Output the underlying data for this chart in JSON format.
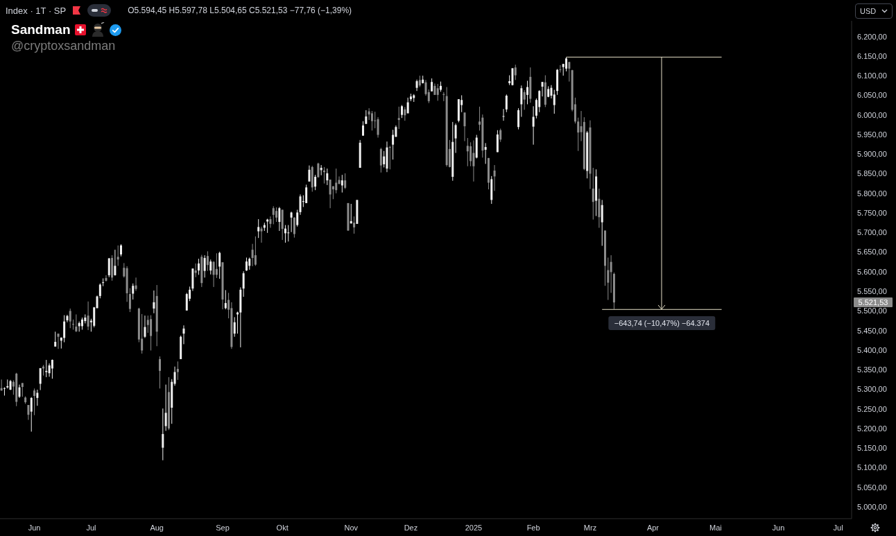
{
  "chart_data": {
    "type": "candlestick",
    "title": "Index · 1T · SP",
    "annotations": [
      "O5.594,45 H5.597,78 L5.504,65 C5.521,53 −77,76 (−1,39%)",
      "Sandman",
      "@cryptoxsandman",
      "USD",
      "5.521,53"
    ],
    "categories": [
      null,
      null,
      null,
      null,
      null,
      null,
      null,
      null,
      null,
      null,
      null,
      "Jun",
      null,
      null,
      null,
      null,
      null,
      null,
      null,
      null,
      null,
      null,
      null,
      null,
      null,
      null,
      null,
      null,
      null,
      null,
      "Jul",
      null,
      null,
      null,
      null,
      null,
      null,
      null,
      null,
      null,
      null,
      null,
      null,
      null,
      null,
      null,
      null,
      null,
      null,
      null,
      null,
      null,
      "Aug",
      null,
      null,
      null,
      null,
      null,
      null,
      null,
      null,
      null,
      null,
      null,
      null,
      null,
      null,
      null,
      null,
      null,
      null,
      null,
      null,
      null,
      "Sep",
      null,
      null,
      null,
      null,
      null,
      null,
      null,
      null,
      null,
      null,
      null,
      null,
      null,
      null,
      null,
      null,
      null,
      null,
      null,
      "Okt",
      null,
      null,
      null,
      null,
      null,
      null,
      null,
      null,
      null,
      null,
      null,
      null,
      null,
      null,
      null,
      null,
      null,
      null,
      null,
      null,
      null,
      null,
      "Nov",
      null,
      null,
      null,
      null,
      null,
      null,
      null,
      null,
      null,
      null,
      null,
      null,
      null,
      null,
      null,
      null,
      null,
      null,
      null,
      "Dez",
      null,
      null,
      null,
      null,
      null,
      null,
      null,
      null,
      null,
      null,
      null,
      null,
      null,
      null,
      null,
      null,
      null,
      null,
      null,
      null,
      "2025",
      null,
      null,
      null,
      null,
      null,
      null,
      null,
      null,
      null,
      null,
      null,
      null,
      null,
      null,
      null,
      null,
      null,
      null,
      null,
      "Feb",
      null,
      null,
      null,
      null,
      null,
      null,
      null,
      null,
      null,
      null,
      null,
      null,
      null,
      null,
      null,
      null,
      null,
      null,
      "Mrz",
      null,
      null,
      null,
      null,
      null,
      null,
      null,
      null,
      null,
      null,
      null,
      null,
      null,
      null,
      null,
      null,
      null,
      null,
      null,
      null,
      "Apr",
      null,
      null,
      null,
      null,
      null,
      null,
      null,
      null,
      null,
      null,
      null,
      null,
      null,
      null,
      null,
      null,
      null,
      null,
      null,
      null,
      "Mai",
      null,
      null,
      null,
      null,
      null,
      null,
      null,
      null,
      null,
      null,
      null,
      null,
      null,
      null,
      null,
      null,
      null,
      null,
      null,
      null,
      "Jun",
      null,
      null,
      null,
      null,
      null,
      null,
      null,
      null,
      null,
      null,
      null,
      null,
      null,
      null,
      null,
      null,
      null,
      null,
      null,
      "Jul",
      null,
      null,
      null,
      null
    ],
    "ohlc": [
      [
        5303,
        5325,
        5296,
        5297
      ],
      [
        5303,
        5305,
        5284,
        5303
      ],
      [
        5305,
        5325,
        5302,
        5308
      ],
      [
        5299,
        5324,
        5298,
        5321
      ],
      [
        5319,
        5323,
        5286,
        5307
      ],
      [
        5340,
        5342,
        5257,
        5268
      ],
      [
        5281,
        5312,
        5278,
        5305
      ],
      [
        5316,
        5316,
        5281,
        5306
      ],
      [
        5279,
        5282,
        5263,
        5267
      ],
      [
        5260,
        5260,
        5222,
        5235
      ],
      [
        5243,
        5280,
        5192,
        5278
      ],
      [
        5297,
        5302,
        5234,
        5283
      ],
      [
        5278,
        5299,
        5258,
        5291
      ],
      [
        5314,
        5354,
        5298,
        5354
      ],
      [
        5358,
        5362,
        5335,
        5353
      ],
      [
        5344,
        5375,
        5331,
        5347
      ],
      [
        5341,
        5366,
        5332,
        5361
      ],
      [
        5353,
        5376,
        5327,
        5375
      ],
      [
        5409,
        5447,
        5409,
        5421
      ],
      [
        5442,
        5442,
        5403,
        5434
      ],
      [
        5424,
        5432,
        5404,
        5432
      ],
      [
        5431,
        5489,
        5420,
        5473
      ],
      [
        5476,
        5490,
        5471,
        5487
      ],
      [
        5500,
        5506,
        5456,
        5473
      ],
      [
        5467,
        5478,
        5452,
        5465
      ],
      [
        5460,
        5491,
        5446,
        5448
      ],
      [
        5461,
        5473,
        5447,
        5469
      ],
      [
        5461,
        5483,
        5452,
        5478
      ],
      [
        5474,
        5491,
        5468,
        5483
      ],
      [
        5488,
        5524,
        5451,
        5460
      ],
      [
        5471,
        5480,
        5447,
        5475
      ],
      [
        5462,
        5510,
        5458,
        5509
      ],
      [
        5507,
        5539,
        5507,
        5537
      ],
      [
        5538,
        5570,
        5532,
        5567
      ],
      [
        5573,
        5583,
        5563,
        5573
      ],
      [
        5584,
        5591,
        5575,
        5577
      ],
      [
        5591,
        5635,
        5586,
        5634
      ],
      [
        5635,
        5642,
        5577,
        5585
      ],
      [
        5591,
        5656,
        5590,
        5615
      ],
      [
        5638,
        5667,
        5615,
        5631
      ],
      [
        5644,
        5670,
        5639,
        5667
      ],
      [
        5610,
        5622,
        5585,
        5588
      ],
      [
        5609,
        5614,
        5523,
        5545
      ],
      [
        5543,
        5558,
        5497,
        5505
      ],
      [
        5544,
        5570,
        5529,
        5564
      ],
      [
        5565,
        5585,
        5551,
        5556
      ],
      [
        5506,
        5508,
        5420,
        5427
      ],
      [
        5429,
        5492,
        5391,
        5399
      ],
      [
        5434,
        5488,
        5431,
        5459
      ],
      [
        5477,
        5488,
        5444,
        5464
      ],
      [
        5479,
        5489,
        5399,
        5436
      ],
      [
        5506,
        5552,
        5494,
        5522
      ],
      [
        5538,
        5566,
        5410,
        5447
      ],
      [
        5377,
        5384,
        5302,
        5347
      ],
      [
        5151,
        5251,
        5119,
        5186
      ],
      [
        5206,
        5312,
        5194,
        5240
      ],
      [
        5293,
        5331,
        5196,
        5200
      ],
      [
        5253,
        5326,
        5212,
        5319
      ],
      [
        5314,
        5358,
        5309,
        5344
      ],
      [
        5352,
        5371,
        5324,
        5344
      ],
      [
        5377,
        5437,
        5377,
        5434
      ],
      [
        5442,
        5463,
        5415,
        5455
      ],
      [
        5501,
        5546,
        5501,
        5543
      ],
      [
        5531,
        5562,
        5525,
        5554
      ],
      [
        5557,
        5608,
        5551,
        5608
      ],
      [
        5603,
        5621,
        5586,
        5597
      ],
      [
        5603,
        5633,
        5592,
        5621
      ],
      [
        5638,
        5643,
        5561,
        5571
      ],
      [
        5602,
        5642,
        5585,
        5635
      ],
      [
        5640,
        5652,
        5602,
        5617
      ],
      [
        5603,
        5631,
        5593,
        5626
      ],
      [
        5625,
        5627,
        5561,
        5592
      ],
      [
        5607,
        5647,
        5584,
        5592
      ],
      [
        5613,
        5651,
        5582,
        5648
      ],
      [
        5624,
        5624,
        5504,
        5529
      ],
      [
        5507,
        5553,
        5504,
        5520
      ],
      [
        5528,
        5546,
        5481,
        5503
      ],
      [
        5507,
        5522,
        5403,
        5408
      ],
      [
        5442,
        5484,
        5434,
        5471
      ],
      [
        5491,
        5498,
        5442,
        5496
      ],
      [
        5496,
        5560,
        5407,
        5554
      ],
      [
        5557,
        5601,
        5536,
        5596
      ],
      [
        5603,
        5636,
        5602,
        5626
      ],
      [
        5615,
        5636,
        5605,
        5633
      ],
      [
        5656,
        5671,
        5614,
        5635
      ],
      [
        5642,
        5690,
        5615,
        5618
      ],
      [
        5703,
        5734,
        5686,
        5714
      ],
      [
        5710,
        5715,
        5674,
        5703
      ],
      [
        5712,
        5725,
        5704,
        5719
      ],
      [
        5728,
        5735,
        5699,
        5733
      ],
      [
        5734,
        5741,
        5712,
        5722
      ],
      [
        5762,
        5767,
        5721,
        5745
      ],
      [
        5755,
        5764,
        5727,
        5738
      ],
      [
        5727,
        5765,
        5704,
        5762
      ],
      [
        5758,
        5758,
        5681,
        5709
      ],
      [
        5698,
        5719,
        5674,
        5710
      ],
      [
        5699,
        5719,
        5677,
        5700
      ],
      [
        5738,
        5753,
        5701,
        5751
      ],
      [
        5738,
        5739,
        5687,
        5696
      ],
      [
        5719,
        5758,
        5715,
        5751
      ],
      [
        5752,
        5797,
        5745,
        5792
      ],
      [
        5778,
        5795,
        5765,
        5780
      ],
      [
        5775,
        5822,
        5775,
        5815
      ],
      [
        5830,
        5871,
        5830,
        5860
      ],
      [
        5867,
        5870,
        5804,
        5815
      ],
      [
        5817,
        5847,
        5808,
        5842
      ],
      [
        5876,
        5878,
        5840,
        5841
      ],
      [
        5859,
        5872,
        5846,
        5865
      ],
      [
        5858,
        5867,
        5825,
        5854
      ],
      [
        5833,
        5863,
        5821,
        5851
      ],
      [
        5835,
        5835,
        5762,
        5797
      ],
      [
        5818,
        5818,
        5785,
        5810
      ],
      [
        5827,
        5863,
        5800,
        5808
      ],
      [
        5834,
        5843,
        5823,
        5824
      ],
      [
        5820,
        5847,
        5802,
        5833
      ],
      [
        5833,
        5851,
        5811,
        5814
      ],
      [
        5775,
        5775,
        5704,
        5705
      ],
      [
        5723,
        5773,
        5723,
        5729
      ],
      [
        5725,
        5741,
        5697,
        5713
      ],
      [
        5722,
        5783,
        5722,
        5783
      ],
      [
        5865,
        5936,
        5865,
        5929
      ],
      [
        5947,
        5984,
        5947,
        5973
      ],
      [
        5977,
        6012,
        5977,
        5996
      ],
      [
        6009,
        6017,
        5987,
        6001
      ],
      [
        6004,
        6010,
        5960,
        5984
      ],
      [
        5986,
        6008,
        5966,
        5985
      ],
      [
        5989,
        5994,
        5942,
        5949
      ],
      [
        5913,
        5916,
        5853,
        5871
      ],
      [
        5874,
        5908,
        5866,
        5894
      ],
      [
        5863,
        5932,
        5854,
        5917
      ],
      [
        5918,
        5921,
        5861,
        5917
      ],
      [
        5924,
        5962,
        5886,
        5949
      ],
      [
        5944,
        5973,
        5944,
        5969
      ],
      [
        5992,
        6021,
        5964,
        5987
      ],
      [
        6000,
        6025,
        5992,
        6022
      ],
      [
        6014,
        6020,
        5985,
        5999
      ],
      [
        6004,
        6044,
        6004,
        6032
      ],
      [
        6040,
        6054,
        6035,
        6047
      ],
      [
        6043,
        6053,
        6033,
        6050
      ],
      [
        6069,
        6090,
        6061,
        6086
      ],
      [
        6089,
        6100,
        6071,
        6075
      ],
      [
        6081,
        6100,
        6080,
        6090
      ],
      [
        6083,
        6089,
        6049,
        6053
      ],
      [
        6058,
        6065,
        6030,
        6035
      ],
      [
        6060,
        6093,
        6060,
        6084
      ],
      [
        6074,
        6080,
        6051,
        6051
      ],
      [
        6068,
        6079,
        6036,
        6051
      ],
      [
        6064,
        6085,
        6059,
        6074
      ],
      [
        6053,
        6058,
        6035,
        6051
      ],
      [
        6048,
        6071,
        5868,
        5872
      ],
      [
        5913,
        5936,
        5866,
        5867
      ],
      [
        5842,
        5982,
        5832,
        5931
      ],
      [
        5940,
        5978,
        5903,
        5974
      ],
      [
        5985,
        6040,
        5981,
        6040
      ],
      [
        6025,
        6050,
        6007,
        6038
      ],
      [
        6006,
        6006,
        5933,
        5971
      ],
      [
        5921,
        5941,
        5869,
        5907
      ],
      [
        5920,
        5930,
        5869,
        5882
      ],
      [
        5903,
        5935,
        5830,
        5869
      ],
      [
        5891,
        5949,
        5889,
        5942
      ],
      [
        5983,
        6021,
        5960,
        5975
      ],
      [
        5993,
        6001,
        5891,
        5909
      ],
      [
        5911,
        5928,
        5875,
        5918
      ],
      [
        5890,
        5890,
        5810,
        5827
      ],
      [
        5783,
        5844,
        5773,
        5836
      ],
      [
        5858,
        5872,
        5806,
        5843
      ],
      [
        5905,
        5961,
        5905,
        5950
      ],
      [
        5961,
        5965,
        5931,
        5937
      ],
      [
        5996,
        6015,
        5985,
        5997
      ],
      [
        6014,
        6052,
        6007,
        6049
      ],
      [
        6081,
        6101,
        6076,
        6086
      ],
      [
        6076,
        6119,
        6075,
        6119
      ],
      [
        6121,
        6128,
        6089,
        6101
      ],
      [
        5969,
        6017,
        5963,
        6012
      ],
      [
        6027,
        6075,
        5995,
        6068
      ],
      [
        6058,
        6063,
        6013,
        6039
      ],
      [
        6051,
        6087,
        6027,
        6071
      ],
      [
        6097,
        6121,
        6031,
        6041
      ],
      [
        5970,
        6022,
        5924,
        5995
      ],
      [
        5998,
        6042,
        5991,
        6038
      ],
      [
        6020,
        6063,
        6007,
        6061
      ],
      [
        6072,
        6084,
        6047,
        6084
      ],
      [
        6083,
        6101,
        6020,
        6026
      ],
      [
        6046,
        6073,
        6045,
        6066
      ],
      [
        6049,
        6076,
        6042,
        6069
      ],
      [
        6025,
        6064,
        6003,
        6052
      ],
      [
        6061,
        6117,
        6051,
        6115
      ],
      [
        6116,
        6127,
        6108,
        6115
      ],
      [
        6122,
        6130,
        6100,
        6130
      ],
      [
        6118,
        6147,
        6111,
        6144
      ],
      [
        6135,
        6135,
        6085,
        6118
      ],
      [
        6114,
        6115,
        6009,
        6013
      ],
      [
        6027,
        6044,
        5978,
        5983
      ],
      [
        5983,
        5993,
        5908,
        5955
      ],
      [
        5971,
        6010,
        5933,
        5956
      ],
      [
        5982,
        5994,
        5859,
        5862
      ],
      [
        5857,
        5959,
        5838,
        5955
      ],
      [
        5968,
        5986,
        5811,
        5850
      ],
      [
        5812,
        5865,
        5733,
        5778
      ],
      [
        5781,
        5861,
        5742,
        5843
      ],
      [
        5786,
        5812,
        5712,
        5739
      ],
      [
        5726,
        5783,
        5666,
        5770
      ],
      [
        5705,
        5705,
        5564,
        5615
      ],
      [
        5604,
        5636,
        5528,
        5572
      ],
      [
        5625,
        5642,
        5546,
        5599
      ],
      [
        5594.45,
        5597.78,
        5504.65,
        5521.53
      ],
      null,
      null,
      null,
      null,
      null,
      null,
      null,
      null,
      null,
      null,
      null,
      null,
      null,
      null,
      null,
      null,
      null,
      null,
      null,
      null,
      null,
      null,
      null,
      null,
      null,
      null,
      null,
      null,
      null,
      null,
      null,
      null,
      null,
      null,
      null,
      null,
      null,
      null,
      null,
      null,
      null,
      null,
      null,
      null,
      null,
      null,
      null,
      null,
      null,
      null,
      null,
      null,
      null,
      null,
      null,
      null,
      null,
      null,
      null,
      null,
      null,
      null,
      null,
      null,
      null,
      null,
      null,
      null,
      null,
      null,
      null,
      null,
      null,
      null,
      null,
      null,
      null,
      null,
      null
    ],
    "colors": [
      "#8c8c8c",
      "#f0f0f0",
      "#f0f0f0",
      "#f0f0f0",
      "#8c8c8c",
      "#8c8c8c",
      "#f0f0f0",
      "#8c8c8c",
      "#8c8c8c",
      "#8c8c8c",
      "#f0f0f0",
      "#8c8c8c",
      "#f0f0f0",
      "#f0f0f0",
      "#8c8c8c",
      "#f0f0f0",
      "#f0f0f0",
      "#f0f0f0",
      "#f0f0f0",
      "#8c8c8c",
      "#f0f0f0",
      "#f0f0f0",
      "#f0f0f0",
      "#8c8c8c",
      "#8c8c8c",
      "#8c8c8c",
      "#f0f0f0",
      "#f0f0f0",
      "#f0f0f0",
      "#8c8c8c",
      "#f0f0f0",
      "#f0f0f0",
      "#f0f0f0",
      "#f0f0f0",
      "#f0f0f0",
      "#8c8c8c",
      "#f0f0f0",
      "#8c8c8c",
      "#f0f0f0",
      "#8c8c8c",
      "#f0f0f0",
      "#8c8c8c",
      "#8c8c8c",
      "#8c8c8c",
      "#f0f0f0",
      "#8c8c8c",
      "#8c8c8c",
      "#8c8c8c",
      "#f0f0f0",
      "#8c8c8c",
      "#8c8c8c",
      "#f0f0f0",
      "#8c8c8c",
      "#8c8c8c",
      "#f0f0f0",
      "#f0f0f0",
      "#8c8c8c",
      "#f0f0f0",
      "#f0f0f0",
      "#8c8c8c",
      "#f0f0f0",
      "#f0f0f0",
      "#f0f0f0",
      "#f0f0f0",
      "#f0f0f0",
      "#8c8c8c",
      "#f0f0f0",
      "#8c8c8c",
      "#f0f0f0",
      "#8c8c8c",
      "#f0f0f0",
      "#8c8c8c",
      "#8c8c8c",
      "#f0f0f0",
      "#8c8c8c",
      "#f0f0f0",
      "#8c8c8c",
      "#8c8c8c",
      "#f0f0f0",
      "#f0f0f0",
      "#f0f0f0",
      "#f0f0f0",
      "#f0f0f0",
      "#f0f0f0",
      "#8c8c8c",
      "#8c8c8c",
      "#f0f0f0",
      "#8c8c8c",
      "#f0f0f0",
      "#f0f0f0",
      "#8c8c8c",
      "#8c8c8c",
      "#8c8c8c",
      "#f0f0f0",
      "#8c8c8c",
      "#f0f0f0",
      "#f0f0f0",
      "#f0f0f0",
      "#8c8c8c",
      "#f0f0f0",
      "#f0f0f0",
      "#f0f0f0",
      "#f0f0f0",
      "#f0f0f0",
      "#8c8c8c",
      "#f0f0f0",
      "#8c8c8c",
      "#f0f0f0",
      "#8c8c8c",
      "#f0f0f0",
      "#8c8c8c",
      "#8c8c8c",
      "#8c8c8c",
      "#8c8c8c",
      "#f0f0f0",
      "#8c8c8c",
      "#8c8c8c",
      "#f0f0f0",
      "#8c8c8c",
      "#f0f0f0",
      "#f0f0f0",
      "#f0f0f0",
      "#f0f0f0",
      "#8c8c8c",
      "#8c8c8c",
      "#8c8c8c",
      "#8c8c8c",
      "#8c8c8c",
      "#f0f0f0",
      "#f0f0f0",
      "#8c8c8c",
      "#f0f0f0",
      "#f0f0f0",
      "#8c8c8c",
      "#f0f0f0",
      "#8c8c8c",
      "#f0f0f0",
      "#f0f0f0",
      "#f0f0f0",
      "#f0f0f0",
      "#8c8c8c",
      "#f0f0f0",
      "#8c8c8c",
      "#8c8c8c",
      "#f0f0f0",
      "#8c8c8c",
      "#8c8c8c",
      "#f0f0f0",
      "#8c8c8c",
      "#8c8c8c",
      "#8c8c8c",
      "#f0f0f0",
      "#f0f0f0",
      "#f0f0f0",
      "#f0f0f0",
      "#8c8c8c",
      "#8c8c8c",
      "#8c8c8c",
      "#8c8c8c",
      "#f0f0f0",
      "#8c8c8c",
      "#8c8c8c",
      "#f0f0f0",
      "#8c8c8c",
      "#f0f0f0",
      "#8c8c8c",
      "#f0f0f0",
      "#8c8c8c",
      "#f0f0f0",
      "#f0f0f0",
      "#f0f0f0",
      "#f0f0f0",
      "#8c8c8c",
      "#f0f0f0",
      "#f0f0f0",
      "#8c8c8c",
      "#f0f0f0",
      "#8c8c8c",
      "#f0f0f0",
      "#f0f0f0",
      "#f0f0f0",
      "#f0f0f0",
      "#8c8c8c",
      "#f0f0f0",
      "#f0f0f0",
      "#f0f0f0",
      "#f0f0f0",
      "#8c8c8c",
      "#f0f0f0",
      "#f0f0f0",
      "#8c8c8c",
      "#8c8c8c",
      "#8c8c8c",
      "#8c8c8c",
      "#8c8c8c",
      "#8c8c8c",
      "#f0f0f0",
      "#8c8c8c",
      "#8c8c8c",
      "#f0f0f0",
      "#8c8c8c",
      "#f0f0f0",
      "#8c8c8c",
      "#8c8c8c",
      "#8c8c8c",
      "#8c8c8c",
      null,
      null,
      null,
      null,
      null,
      null,
      null,
      null,
      null,
      null,
      null,
      null,
      null,
      null,
      null,
      null,
      null,
      null,
      null,
      null,
      null,
      null,
      null,
      null,
      null,
      null,
      null,
      null,
      null,
      null,
      null,
      null,
      null,
      null,
      null,
      null,
      null,
      null,
      null,
      null,
      null,
      null,
      null,
      null,
      null,
      null,
      null,
      null,
      null,
      null,
      null,
      null,
      null,
      null,
      null,
      null,
      null,
      null,
      null,
      null,
      null,
      null,
      null,
      null,
      null,
      null,
      null,
      null,
      null,
      null,
      null,
      null,
      null,
      null,
      null,
      null,
      null,
      null,
      null
    ],
    "ylim": [
      4970,
      6240
    ],
    "yticks": [
      {
        "value": 5000,
        "label": "5.000,00"
      },
      {
        "value": 5050,
        "label": "5.050,00"
      },
      {
        "value": 5100,
        "label": "5.100,00"
      },
      {
        "value": 5150,
        "label": "5.150,00"
      },
      {
        "value": 5200,
        "label": "5.200,00"
      },
      {
        "value": 5250,
        "label": "5.250,00"
      },
      {
        "value": 5300,
        "label": "5.300,00"
      },
      {
        "value": 5350,
        "label": "5.350,00"
      },
      {
        "value": 5400,
        "label": "5.400,00"
      },
      {
        "value": 5450,
        "label": "5.450,00"
      },
      {
        "value": 5500,
        "label": "5.500,00"
      },
      {
        "value": 5550,
        "label": "5.550,00"
      },
      {
        "value": 5600,
        "label": "5.600,00"
      },
      {
        "value": 5650,
        "label": "5.650,00"
      },
      {
        "value": 5700,
        "label": "5.700,00"
      },
      {
        "value": 5750,
        "label": "5.750,00"
      },
      {
        "value": 5800,
        "label": "5.800,00"
      },
      {
        "value": 5850,
        "label": "5.850,00"
      },
      {
        "value": 5900,
        "label": "5.900,00"
      },
      {
        "value": 5950,
        "label": "5.950,00"
      },
      {
        "value": 6000,
        "label": "6.000,00"
      },
      {
        "value": 6050,
        "label": "6.050,00"
      },
      {
        "value": 6100,
        "label": "6.100,00"
      },
      {
        "value": 6150,
        "label": "6.150,00"
      },
      {
        "value": 6200,
        "label": "6.200,00"
      }
    ],
    "ref_lines": [
      {
        "axis": "y",
        "value": 6147.43,
        "color": "#e6e0c8"
      },
      {
        "axis": "y",
        "value": 5503.69,
        "label": "−643,74 (−10,47%) −64.374",
        "color": "#e6e0c8"
      }
    ]
  }
}
